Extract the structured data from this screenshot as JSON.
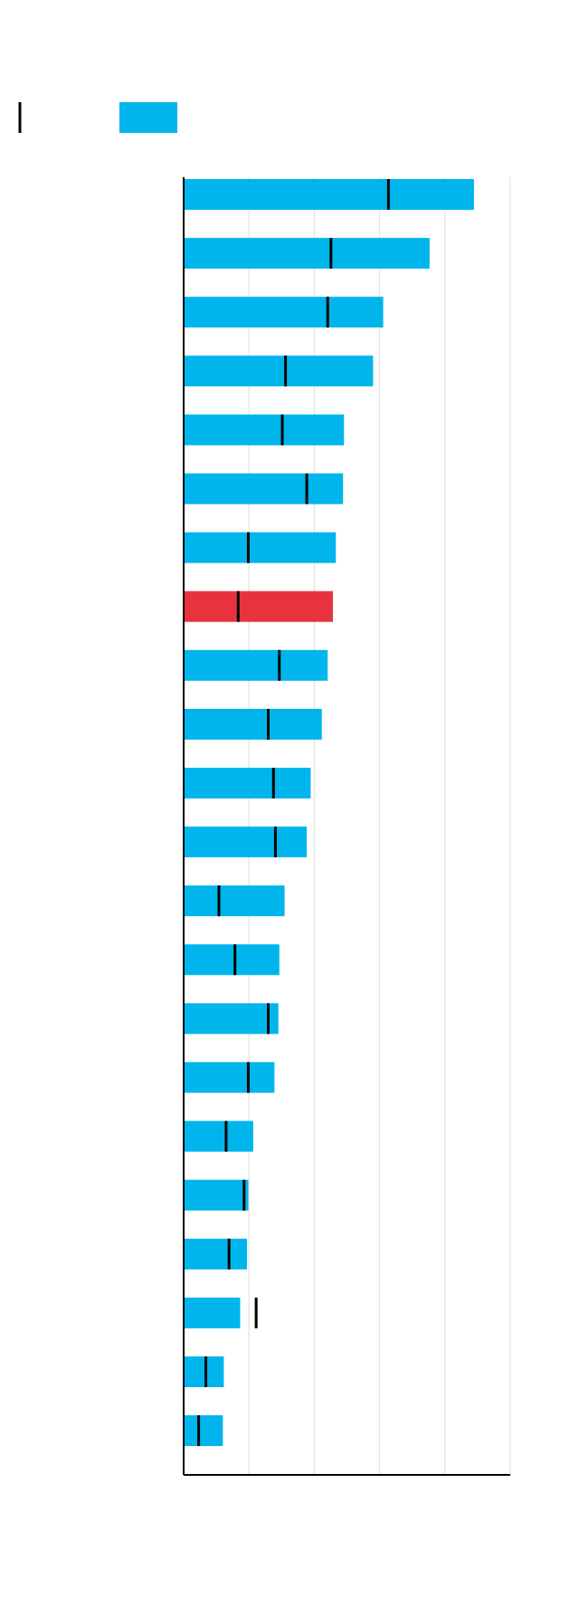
{
  "chart_data": {
    "type": "bar",
    "orientation": "horizontal",
    "categories": [
      null,
      null,
      null,
      null,
      null,
      null,
      null,
      null,
      null,
      null,
      null,
      null,
      null,
      null,
      null,
      null,
      null,
      null,
      null,
      null,
      null,
      null
    ],
    "series": [
      {
        "color": "#00b5ec",
        "values": [
          88.9,
          75.3,
          61.1,
          58.0,
          49.1,
          48.8,
          46.6,
          45.7,
          44.1,
          42.3,
          38.9,
          37.7,
          30.9,
          29.3,
          29.0,
          27.8,
          21.3,
          19.8,
          19.4,
          17.3,
          12.3,
          12.0
        ],
        "bar_colors": [
          "#00b5ec",
          "#00b5ec",
          "#00b5ec",
          "#00b5ec",
          "#00b5ec",
          "#00b5ec",
          "#00b5ec",
          "#e8333f",
          "#00b5ec",
          "#00b5ec",
          "#00b5ec",
          "#00b5ec",
          "#00b5ec",
          "#00b5ec",
          "#00b5ec",
          "#00b5ec",
          "#00b5ec",
          "#00b5ec",
          "#00b5ec",
          "#00b5ec",
          "#00b5ec",
          "#00b5ec"
        ]
      },
      {
        "color": "#000000",
        "marker": "tick",
        "values": [
          62.7,
          45.1,
          44.1,
          31.2,
          30.2,
          37.7,
          19.8,
          16.7,
          29.3,
          25.9,
          27.5,
          28.1,
          10.8,
          15.7,
          25.9,
          19.8,
          13.0,
          18.5,
          13.9,
          22.2,
          6.8,
          4.6
        ]
      }
    ],
    "xlim": [
      0,
      100
    ],
    "xticks": [
      0,
      20,
      40,
      60,
      80,
      100
    ],
    "grid": true,
    "legend": "top-left"
  }
}
